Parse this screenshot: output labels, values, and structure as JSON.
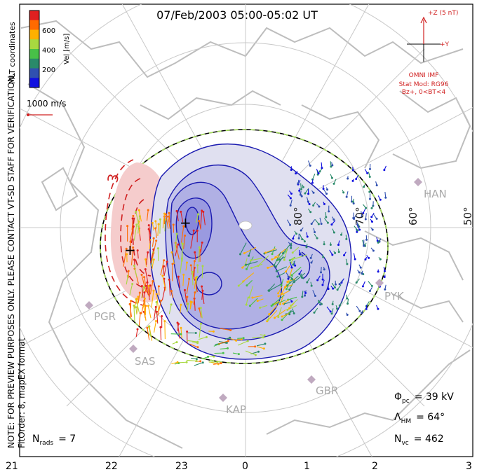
{
  "title": "07/Feb/2003 05:00-05:02 UT",
  "coords": "MLT coordinates",
  "colorbar": {
    "label": "Vel [m/s]",
    "ticks": [
      "600",
      "400",
      "200"
    ],
    "colors": [
      "#e02020",
      "#ff6a00",
      "#ffb000",
      "#a8d840",
      "#48c048",
      "#2a8a6a",
      "#3050b0",
      "#1010e0"
    ]
  },
  "vector_scale": "1000 m/s",
  "side_note": "NOTE: FOR PREVIEW PURPOSES ONLY. PLEASE CONTACT VT-SD STAFF FOR VERIFICATION.",
  "fit_note": "FitOrder: 8, mapEX format",
  "imf": {
    "z_label": "+Z (5 nT)",
    "y_label": "+Y",
    "source": "OMNI IMF",
    "model": "Stat Mod: RG96",
    "condition": "Bz+, 0<BT<4"
  },
  "lat_labels": [
    "80°",
    "70°",
    "60°",
    "50°"
  ],
  "stations": [
    "HAN",
    "PYK",
    "PGR",
    "SAS",
    "KAP",
    "GBR"
  ],
  "mlt_ticks": [
    "21",
    "22",
    "23",
    "0",
    "1",
    "2",
    "3"
  ],
  "stats": {
    "phi_sym": "Φ",
    "phi_sub": "pc",
    "phi_val": "= 39 kV",
    "lam_sym": "Λ",
    "lam_sub": "HM",
    "lam_val": "= 64°",
    "nvc_sym": "N",
    "nvc_sub": "vc",
    "nvc_val": "= 462",
    "nrads_sym": "N",
    "nrads_sub": "rads",
    "nrads_val": "= 7"
  },
  "markers": {
    "min": "+",
    "max": "+"
  }
}
